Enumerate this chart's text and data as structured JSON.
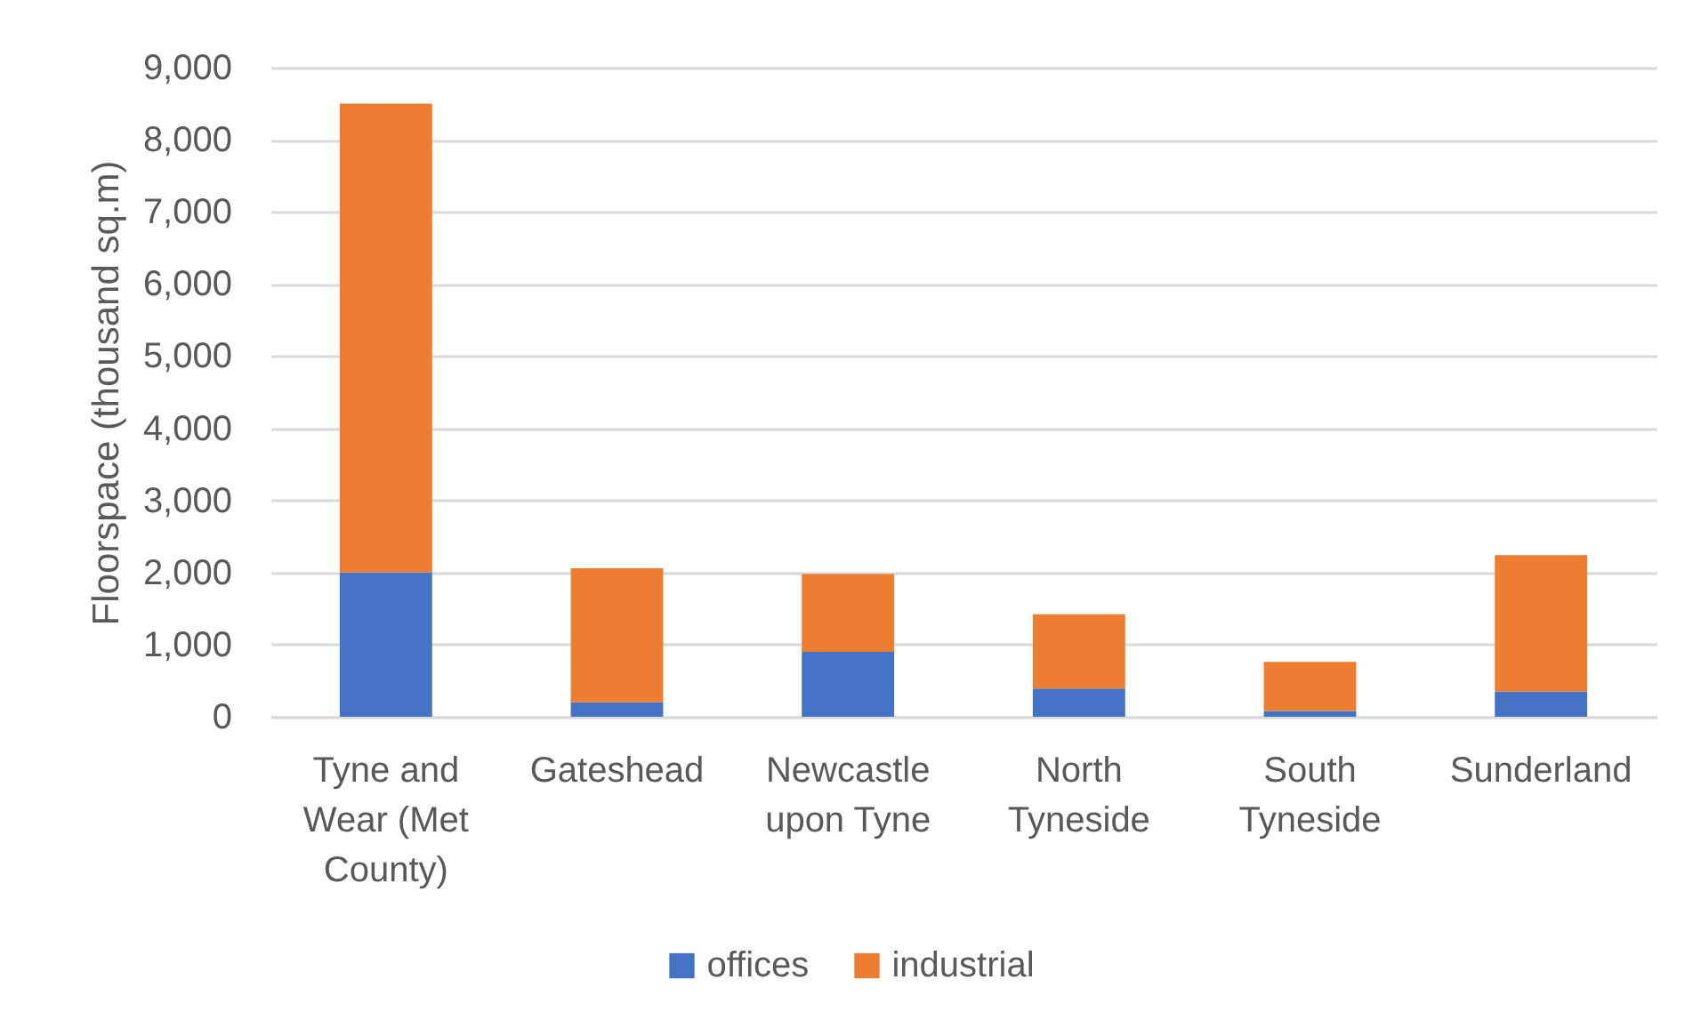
{
  "chart_data": {
    "type": "bar",
    "stacked": true,
    "categories": [
      "Tyne and Wear (Met County)",
      "Gateshead",
      "Newcastle upon Tyne",
      "North Tyneside",
      "South Tyneside",
      "Sunderland"
    ],
    "series": [
      {
        "name": "offices",
        "color": "#4472c4",
        "values": [
          2000,
          200,
          900,
          390,
          80,
          350
        ]
      },
      {
        "name": "industrial",
        "color": "#ed7d31",
        "values": [
          6500,
          1860,
          1080,
          1030,
          680,
          1890
        ]
      }
    ],
    "ylabel": "Floorspace (thousand sq.m)",
    "ylim": [
      0,
      9000
    ],
    "yticks": [
      0,
      {
        "value": 1000,
        "label": "1,000"
      },
      {
        "value": 2000,
        "label": "2,000"
      },
      {
        "value": 3000,
        "label": "3,000"
      },
      {
        "value": 4000,
        "label": "4,000"
      },
      {
        "value": 5000,
        "label": "5,000"
      },
      {
        "value": 6000,
        "label": "6,000"
      },
      {
        "value": 7000,
        "label": "7,000"
      },
      {
        "value": 8000,
        "label": "8,000"
      },
      {
        "value": 9000,
        "label": "9,000"
      }
    ],
    "grid": "y",
    "legend": "bottom"
  }
}
